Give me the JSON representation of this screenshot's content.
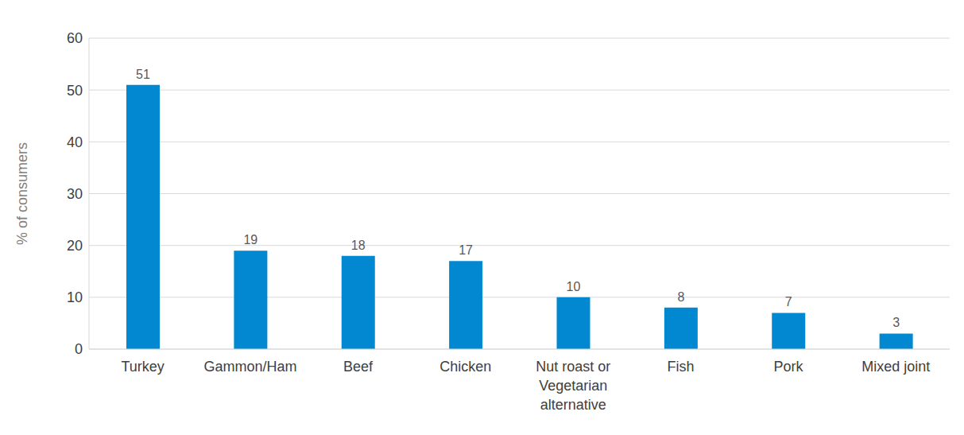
{
  "chart_data": {
    "type": "bar",
    "y_label": "% of consumers",
    "categories": [
      "Turkey",
      "Gammon/Ham",
      "Beef",
      "Chicken",
      "Nut roast or Vegetarian alternative",
      "Fish",
      "Pork",
      "Mixed joint"
    ],
    "values": [
      51,
      19,
      18,
      17,
      10,
      8,
      7,
      3
    ],
    "color": "#0288d1",
    "ylim": [
      0,
      60
    ],
    "yticks": [
      0,
      10,
      20,
      30,
      40,
      50,
      60
    ],
    "grid": true,
    "data_labels": true
  }
}
